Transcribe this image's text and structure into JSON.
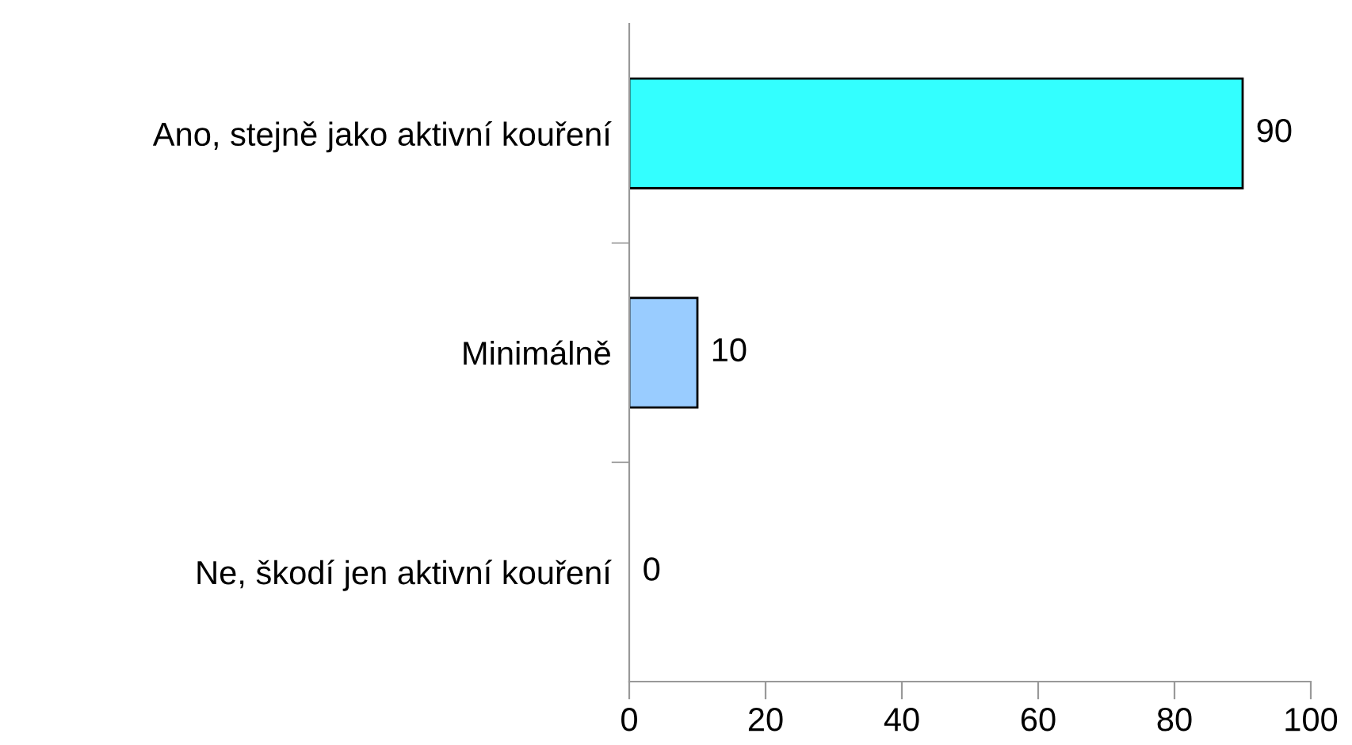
{
  "chart_data": {
    "type": "bar",
    "orientation": "horizontal",
    "categories": [
      "Ano, stejně jako aktivní kouření",
      "Minimálně",
      "Ne, škodí jen aktivní kouření"
    ],
    "values": [
      90,
      10,
      0
    ],
    "colors": [
      "#33ffff",
      "#99ccff",
      "#ccccff"
    ],
    "xlim": [
      0,
      100
    ],
    "xticks": [
      0,
      20,
      40,
      60,
      80,
      100
    ],
    "data_labels": true,
    "grid": false,
    "legend": false
  }
}
